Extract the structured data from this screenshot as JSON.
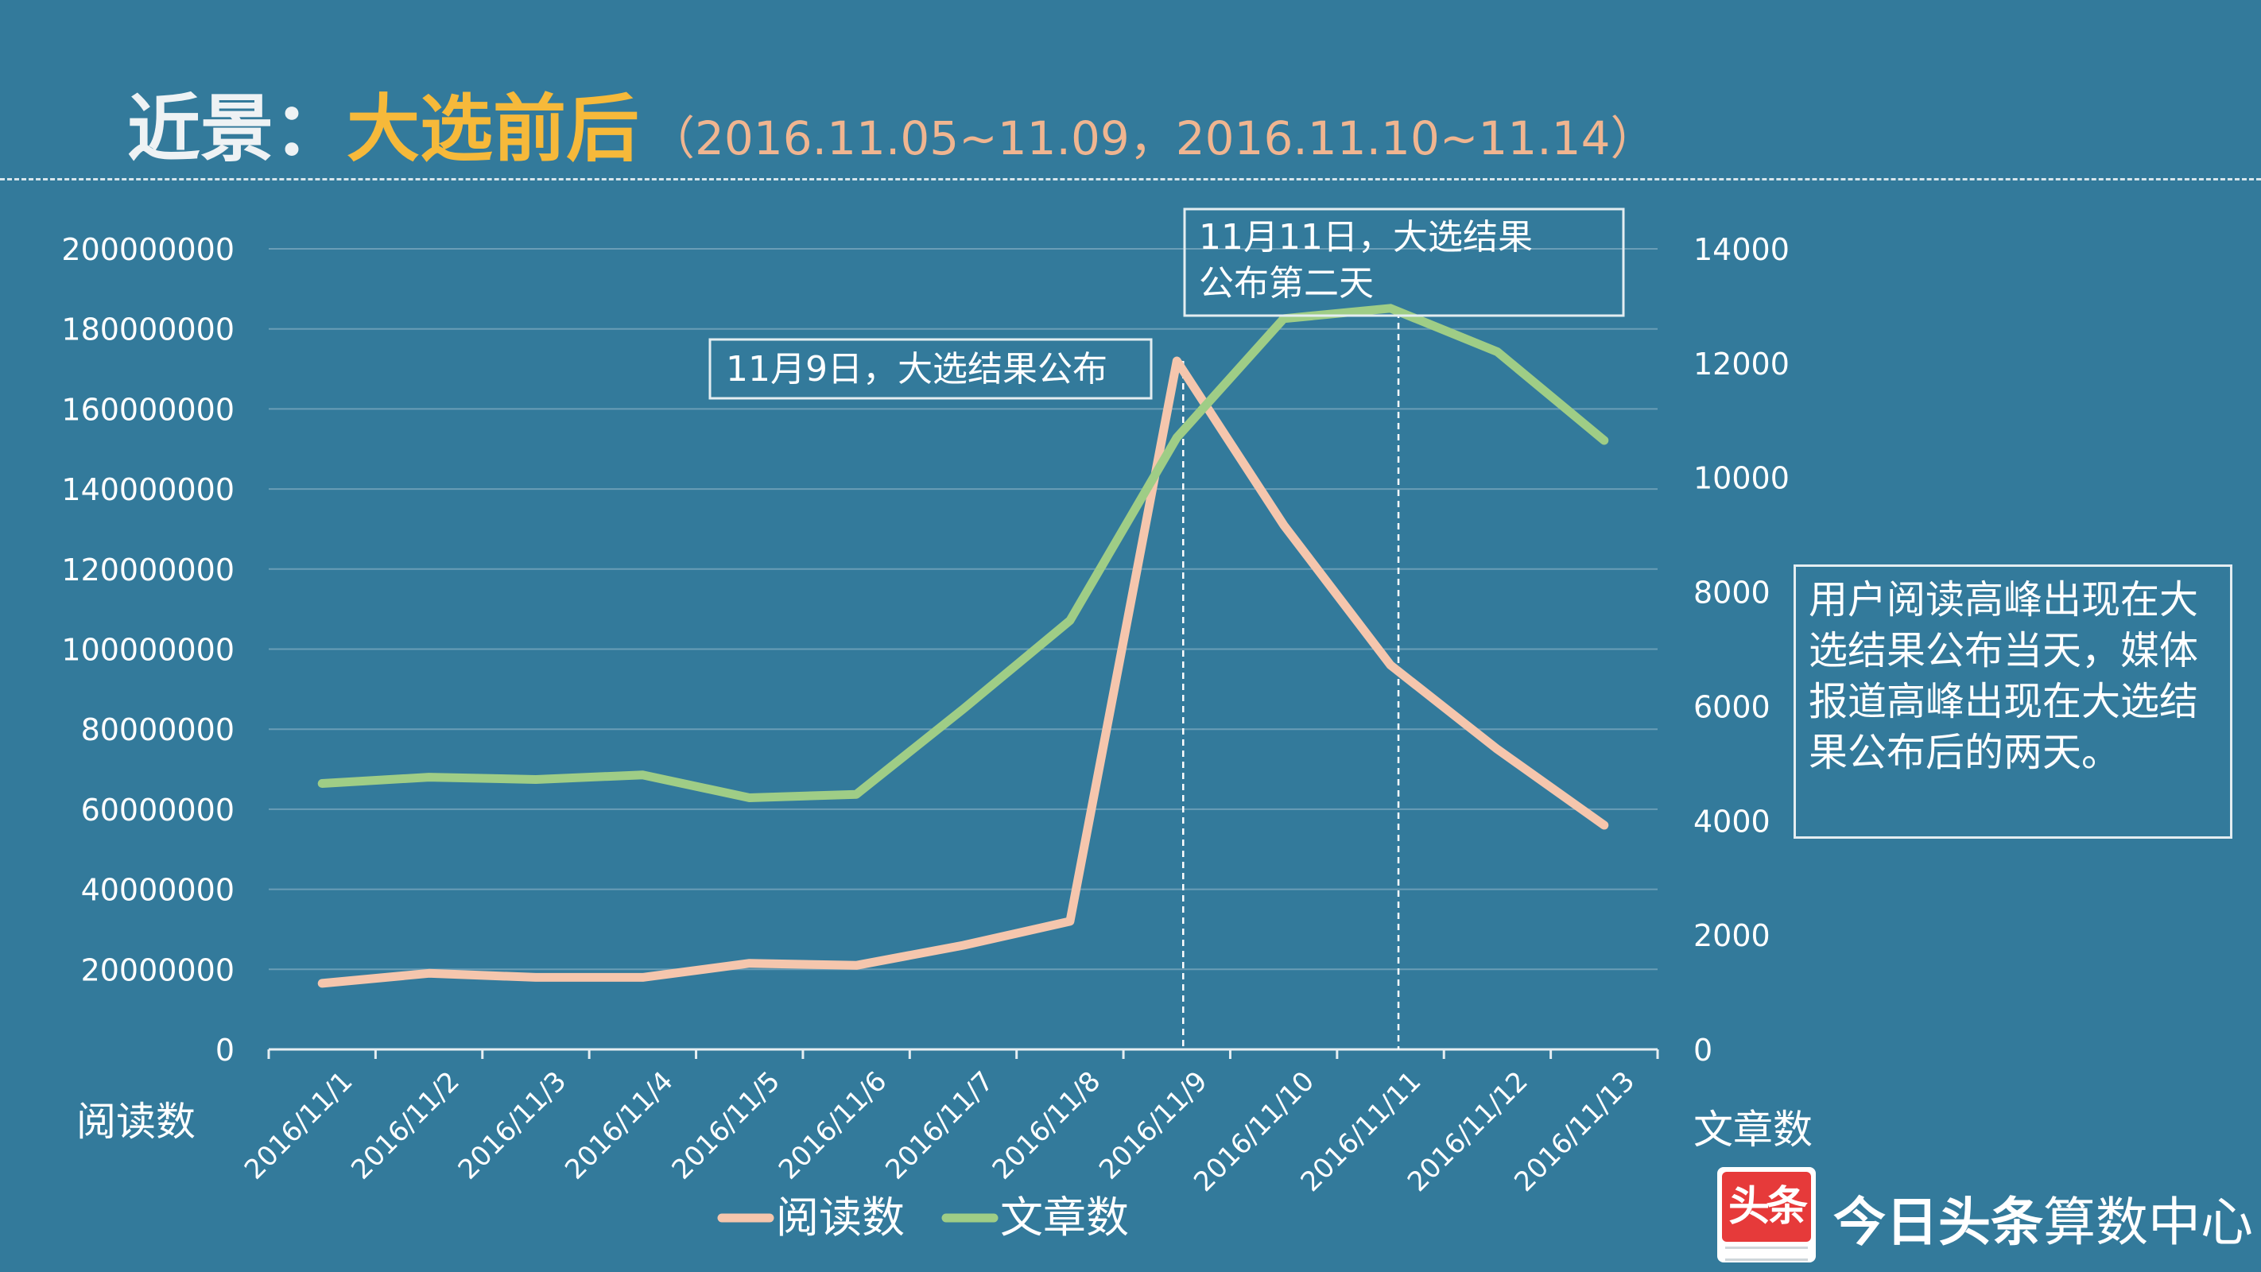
{
  "header": {
    "title_main": "近景：",
    "title_accent": "大选前后",
    "title_range": "（2016.11.05~11.09，2016.11.10~11.14）"
  },
  "chart_data": {
    "type": "line",
    "categories": [
      "2016/11/1",
      "2016/11/2",
      "2016/11/3",
      "2016/11/4",
      "2016/11/5",
      "2016/11/6",
      "2016/11/7",
      "2016/11/8",
      "2016/11/9",
      "2016/11/10",
      "2016/11/11",
      "2016/11/12",
      "2016/11/13"
    ],
    "series": [
      {
        "name": "阅读数",
        "axis": "left",
        "color": "#f5c6ad",
        "values": [
          16500000,
          19000000,
          18000000,
          18000000,
          21500000,
          21000000,
          26000000,
          32000000,
          172000000,
          131000000,
          96000000,
          75000000,
          56000000
        ]
      },
      {
        "name": "文章数",
        "axis": "right",
        "color": "#9fcd86",
        "values": [
          4650,
          4760,
          4720,
          4800,
          4400,
          4460,
          5950,
          7500,
          10700,
          12780,
          12960,
          12200,
          10650
        ]
      }
    ],
    "ylabel": "阅读数",
    "y2label": "文章数",
    "ylim": [
      0,
      200000000
    ],
    "y2lim": [
      0,
      14000
    ],
    "yticks": [
      "0",
      "20000000",
      "40000000",
      "60000000",
      "80000000",
      "100000000",
      "120000000",
      "140000000",
      "160000000",
      "180000000",
      "200000000"
    ],
    "y2ticks": [
      "0",
      "2000",
      "4000",
      "6000",
      "8000",
      "10000",
      "12000",
      "14000"
    ],
    "grid": true,
    "legend_position": "bottom",
    "annotations": [
      {
        "text": "11月9日，大选结果公布",
        "at_category": "2016/11/9"
      },
      {
        "text": "11月11日，大选结果公布第二天",
        "at_category": "2016/11/11"
      }
    ]
  },
  "summary_text": "用户阅读高峰出现在大选结果公布当天，媒体报道高峰出现在大选结果公布后的两天。",
  "logo": {
    "icon_text": "头条",
    "brand_bold": "今日头条",
    "brand_rest": "算数中心"
  }
}
